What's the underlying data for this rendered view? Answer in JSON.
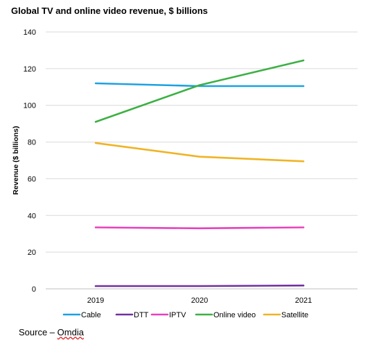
{
  "chart_data": {
    "type": "line",
    "title": "Global TV and online video revenue, $ billions",
    "xlabel": "",
    "ylabel": "Revenue ($ billions)",
    "categories": [
      "2019",
      "2020",
      "2021"
    ],
    "ylim": [
      0,
      140
    ],
    "yticks": [
      0,
      20,
      40,
      60,
      80,
      100,
      120,
      140
    ],
    "grid": true,
    "legend_position": "bottom",
    "series": [
      {
        "name": "Cable",
        "color": "#1ba1e2",
        "values": [
          112,
          110.5,
          110.5
        ]
      },
      {
        "name": "DTT",
        "color": "#7030a0",
        "values": [
          1.5,
          1.5,
          1.8
        ]
      },
      {
        "name": "IPTV",
        "color": "#e83fbf",
        "values": [
          33.5,
          33,
          33.5
        ]
      },
      {
        "name": "Online video",
        "color": "#3cb043",
        "values": [
          91,
          111,
          124.5
        ]
      },
      {
        "name": "Satellite",
        "color": "#f0b323",
        "values": [
          79.5,
          72,
          69.5
        ]
      }
    ]
  },
  "source": {
    "prefix": "Source – ",
    "name": "Omdia"
  }
}
